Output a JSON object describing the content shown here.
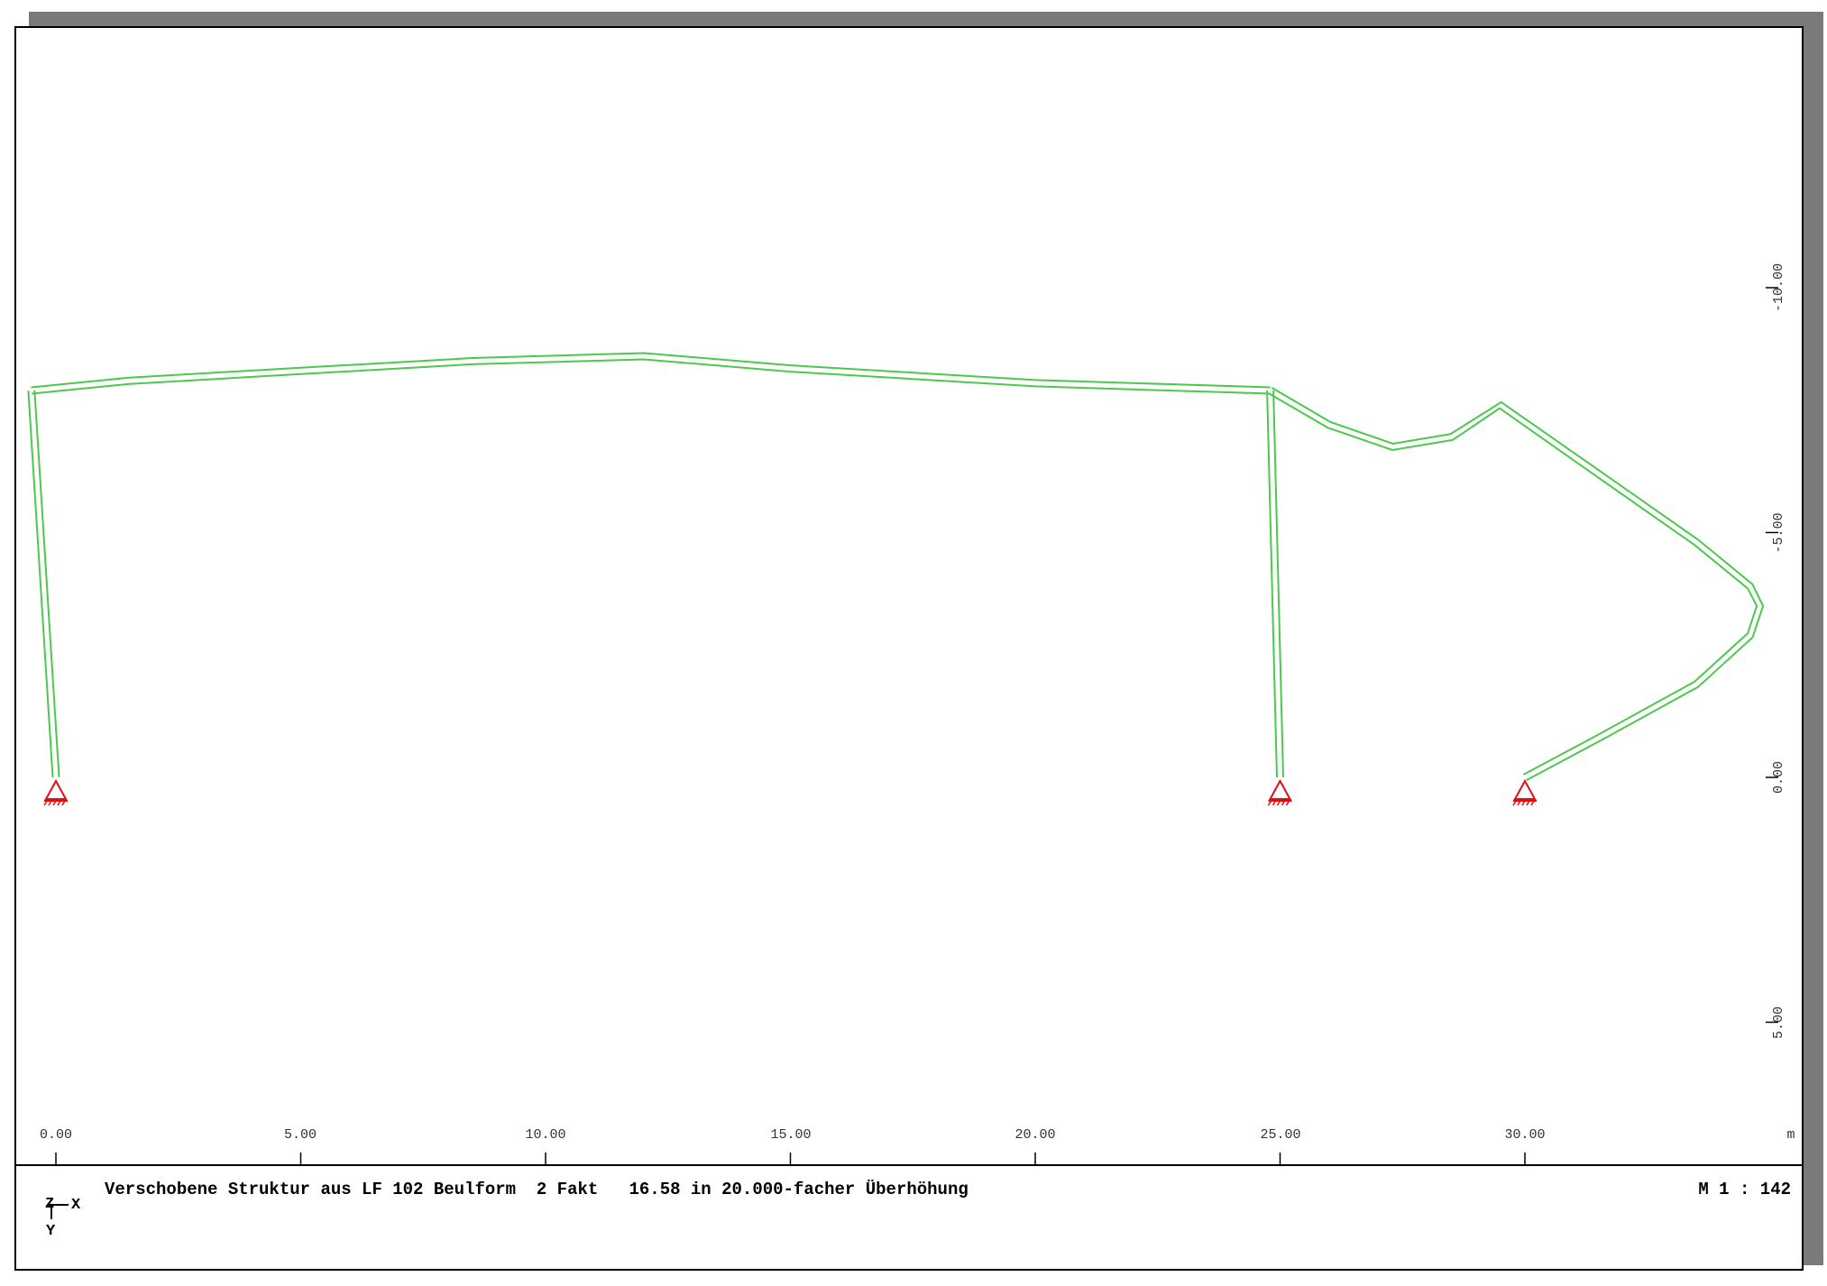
{
  "footer": {
    "caption": "Verschobene Struktur aus LF 102 Beulform  2 Fakt   16.58 in 20.000-facher Überhöhung",
    "scale": "M 1 : 142"
  },
  "coordinate_indicator": {
    "horizontal": "X",
    "vertical": "Y",
    "out_of_plane": "Z"
  },
  "x_axis": {
    "unit": "m",
    "ticks": [
      "0.00",
      "5.00",
      "10.00",
      "15.00",
      "20.00",
      "25.00",
      "30.00"
    ]
  },
  "y_axis": {
    "ticks": [
      "-10.00",
      "-5.00",
      "0.00",
      "5.00"
    ]
  },
  "colors": {
    "structure": "#4cc84c",
    "supports": "#e01010",
    "axis_ticks_y": "#c04040",
    "frame": "#000000"
  },
  "supports": [
    {
      "x": 0.0,
      "y": 0.0
    },
    {
      "x": 25.0,
      "y": 0.0
    },
    {
      "x": 30.0,
      "y": 0.0
    }
  ],
  "deformed_members": [
    {
      "name": "left-column",
      "points": [
        [
          0.0,
          0.0
        ],
        [
          -0.5,
          -7.9
        ]
      ]
    },
    {
      "name": "roof-beam",
      "points": [
        [
          -0.5,
          -7.9
        ],
        [
          1.5,
          -8.1
        ],
        [
          5.0,
          -8.3
        ],
        [
          8.5,
          -8.5
        ],
        [
          12.0,
          -8.6
        ],
        [
          15.0,
          -8.35
        ],
        [
          20.0,
          -8.05
        ],
        [
          24.8,
          -7.9
        ]
      ]
    },
    {
      "name": "middle-column",
      "points": [
        [
          25.0,
          0.0
        ],
        [
          24.8,
          -7.9
        ]
      ]
    },
    {
      "name": "right-arch",
      "points": [
        [
          24.8,
          -7.9
        ],
        [
          26.0,
          -7.2
        ],
        [
          27.3,
          -6.75
        ],
        [
          28.5,
          -6.95
        ],
        [
          29.5,
          -7.6
        ],
        [
          31.5,
          -6.2
        ],
        [
          33.5,
          -4.8
        ],
        [
          34.6,
          -3.9
        ],
        [
          34.8,
          -3.5
        ],
        [
          34.6,
          -2.9
        ],
        [
          33.5,
          -1.9
        ],
        [
          31.5,
          -0.8
        ],
        [
          30.0,
          0.0
        ]
      ]
    }
  ]
}
